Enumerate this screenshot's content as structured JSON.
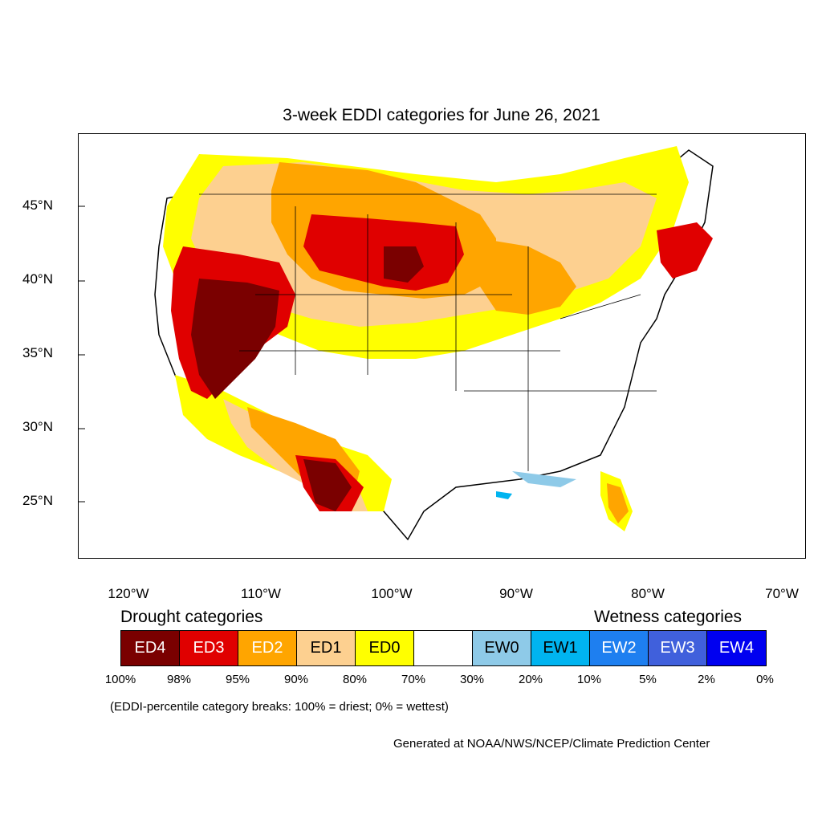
{
  "title": "3-week EDDI categories for June 26, 2021",
  "map": {
    "latitude_labels": [
      "45°N",
      "40°N",
      "35°N",
      "30°N",
      "25°N"
    ],
    "longitude_labels": [
      "120°W",
      "110°W",
      "100°W",
      "90°W",
      "80°W",
      "70°W"
    ]
  },
  "legend": {
    "drought_title": "Drought categories",
    "wetness_title": "Wetness categories",
    "categories": [
      {
        "label": "ED4",
        "color": "#7a0000",
        "text_color": "#ffffff"
      },
      {
        "label": "ED3",
        "color": "#e00000",
        "text_color": "#ffffff"
      },
      {
        "label": "ED2",
        "color": "#ffa500",
        "text_color": "#ffffff"
      },
      {
        "label": "ED1",
        "color": "#fdd090",
        "text_color": "#000000"
      },
      {
        "label": "ED0",
        "color": "#ffff00",
        "text_color": "#000000"
      },
      {
        "label": "",
        "color": "#ffffff",
        "text_color": "#000000"
      },
      {
        "label": "EW0",
        "color": "#8ecae8",
        "text_color": "#000000"
      },
      {
        "label": "EW1",
        "color": "#00b4f0",
        "text_color": "#000000"
      },
      {
        "label": "EW2",
        "color": "#1e7ff0",
        "text_color": "#ffffff"
      },
      {
        "label": "EW3",
        "color": "#4060dc",
        "text_color": "#ffffff"
      },
      {
        "label": "EW4",
        "color": "#0000f0",
        "text_color": "#ffffff"
      }
    ],
    "breaks": [
      "100%",
      "98%",
      "95%",
      "90%",
      "80%",
      "70%",
      "30%",
      "20%",
      "10%",
      "5%",
      "2%",
      "0%"
    ]
  },
  "note": "(EDDI-percentile category breaks: 100% = driest; 0% = wettest)",
  "credit": "Generated at NOAA/NWS/NCEP/Climate Prediction Center"
}
